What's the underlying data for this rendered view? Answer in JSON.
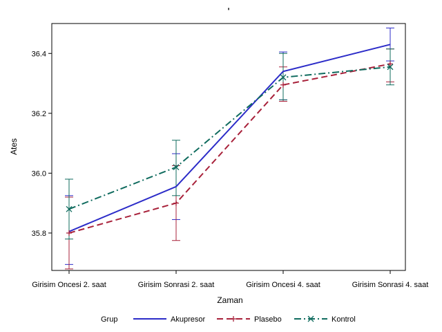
{
  "chart_data": {
    "type": "line",
    "title": "'",
    "xlabel": "Zaman",
    "ylabel": "Ates",
    "categories": [
      "Girisim Oncesi 2. saat",
      "Girisim Sonrasi 2. saat",
      "Girisim Oncesi 4. saat",
      "Girisim Sonrasi 4. saat"
    ],
    "ylim": [
      35.675,
      36.5
    ],
    "yticks": [
      35.8,
      36.0,
      36.2,
      36.4
    ],
    "ytick_labels": [
      "35.8",
      "36.0",
      "36.2",
      "36.4"
    ],
    "grid": false,
    "legend_title": "Grup",
    "legend_position": "bottom",
    "series": [
      {
        "name": "Akupresor",
        "color": "#2b2bc8",
        "dash": "solid",
        "marker": "none",
        "values": [
          35.805,
          35.955,
          36.34,
          36.43
        ],
        "error_low": [
          35.695,
          35.845,
          36.245,
          36.375
        ],
        "error_high": [
          35.925,
          36.065,
          36.405,
          36.485
        ]
      },
      {
        "name": "Plasebo",
        "color": "#a8213a",
        "dash": "dashed",
        "marker": "plus",
        "values": [
          35.8,
          35.9,
          36.295,
          36.365
        ],
        "error_low": [
          35.68,
          35.775,
          36.24,
          36.305
        ],
        "error_high": [
          35.92,
          36.025,
          36.355,
          36.415
        ]
      },
      {
        "name": "Kontrol",
        "color": "#0f6b5e",
        "dash": "dashdot",
        "marker": "x",
        "values": [
          35.88,
          36.02,
          36.32,
          36.355
        ],
        "error_low": [
          35.78,
          35.925,
          36.245,
          36.295
        ],
        "error_high": [
          35.98,
          36.11,
          36.4,
          36.415
        ]
      }
    ]
  }
}
